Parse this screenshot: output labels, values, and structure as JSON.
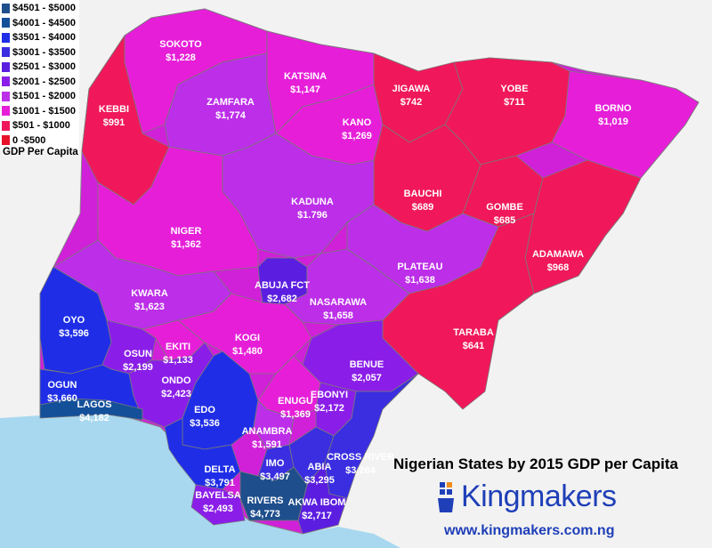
{
  "legend": {
    "items": [
      {
        "label": "$4501 - $5000",
        "color": "#1e4e8c"
      },
      {
        "label": "$4001 - $4500",
        "color": "#14509a"
      },
      {
        "label": "$3501 - $4000",
        "color": "#1f2ee6"
      },
      {
        "label": "$3001 - $3500",
        "color": "#3a2ee0"
      },
      {
        "label": "$2501 - $3000",
        "color": "#5b1ee0"
      },
      {
        "label": "$2001 - $2500",
        "color": "#8a1ee8"
      },
      {
        "label": "$1501 - $2000",
        "color": "#bc2ee8"
      },
      {
        "label": "$1001 - $1500",
        "color": "#e61ed8"
      },
      {
        "label": "$501 - $1000",
        "color": "#f0185a"
      },
      {
        "label": "0 -$500",
        "color": "#e8132a"
      }
    ],
    "title": "GDP Per Capita"
  },
  "states": [
    {
      "name": "SOKOTO",
      "gdp": "$1,228",
      "color": "#e61ed8"
    },
    {
      "name": "KATSINA",
      "gdp": "$1,147",
      "color": "#e61ed8"
    },
    {
      "name": "JIGAWA",
      "gdp": "$742",
      "color": "#f0185a"
    },
    {
      "name": "YOBE",
      "gdp": "$711",
      "color": "#f0185a"
    },
    {
      "name": "BORNO",
      "gdp": "$1,019",
      "color": "#e61ed8"
    },
    {
      "name": "KEBBI",
      "gdp": "$991",
      "color": "#f0185a"
    },
    {
      "name": "ZAMFARA",
      "gdp": "$1,774",
      "color": "#bc2ee8"
    },
    {
      "name": "KANO",
      "gdp": "$1,269",
      "color": "#e61ed8"
    },
    {
      "name": "BAUCHI",
      "gdp": "$689",
      "color": "#f0185a"
    },
    {
      "name": "GOMBE",
      "gdp": "$685",
      "color": "#f0185a"
    },
    {
      "name": "KADUNA",
      "gdp": "$1.796",
      "color": "#bc2ee8"
    },
    {
      "name": "NIGER",
      "gdp": "$1,362",
      "color": "#e61ed8"
    },
    {
      "name": "ADAMAWA",
      "gdp": "$968",
      "color": "#f0185a"
    },
    {
      "name": "PLATEAU",
      "gdp": "$1,638",
      "color": "#bc2ee8"
    },
    {
      "name": "ABUJA FCT",
      "gdp": "$2,682",
      "color": "#5b1ee0"
    },
    {
      "name": "KWARA",
      "gdp": "$1,623",
      "color": "#bc2ee8"
    },
    {
      "name": "NASARAWA",
      "gdp": "$1,658",
      "color": "#bc2ee8"
    },
    {
      "name": "OYO",
      "gdp": "$3,596",
      "color": "#1f2ee6"
    },
    {
      "name": "TARABA",
      "gdp": "$641",
      "color": "#f0185a"
    },
    {
      "name": "EKITI",
      "gdp": "$1,133",
      "color": "#e61ed8"
    },
    {
      "name": "KOGI",
      "gdp": "$1,480",
      "color": "#e61ed8"
    },
    {
      "name": "OSUN",
      "gdp": "$2,199",
      "color": "#8a1ee8"
    },
    {
      "name": "BENUE",
      "gdp": "$2,057",
      "color": "#8a1ee8"
    },
    {
      "name": "ONDO",
      "gdp": "$2,423",
      "color": "#8a1ee8"
    },
    {
      "name": "OGUN",
      "gdp": "$3,660",
      "color": "#1f2ee6"
    },
    {
      "name": "LAGOS",
      "gdp": "$4,182",
      "color": "#14509a"
    },
    {
      "name": "EDO",
      "gdp": "$3,536",
      "color": "#1f2ee6"
    },
    {
      "name": "ENUGU",
      "gdp": "$1,369",
      "color": "#e61ed8"
    },
    {
      "name": "EBONYI",
      "gdp": "$2,172",
      "color": "#8a1ee8"
    },
    {
      "name": "ANAMBRA",
      "gdp": "$1,591",
      "color": "#bc2ee8"
    },
    {
      "name": "CROSS RIVER",
      "gdp": "$3,264",
      "color": "#3a2ee0"
    },
    {
      "name": "DELTA",
      "gdp": "$3,791",
      "color": "#1f2ee6"
    },
    {
      "name": "IMO",
      "gdp": "$3,497",
      "color": "#3a2ee0"
    },
    {
      "name": "ABIA",
      "gdp": "$3,295",
      "color": "#3a2ee0"
    },
    {
      "name": "BAYELSA",
      "gdp": "$2,493",
      "color": "#8a1ee8"
    },
    {
      "name": "RIVERS",
      "gdp": "$4,773",
      "color": "#1e4e8c"
    },
    {
      "name": "AKWA IBOM",
      "gdp": "$2,717",
      "color": "#5b1ee0"
    }
  ],
  "map_title": "Nigerian States by 2015 GDP per Capita",
  "brand": {
    "name": "Kingmakers",
    "url": "www.kingmakers.com.ng",
    "color": "#1f3fb8"
  },
  "colors": {
    "ocean": "#a8d8f0",
    "land_outside": "#f2f2f2",
    "border": "#777777"
  }
}
